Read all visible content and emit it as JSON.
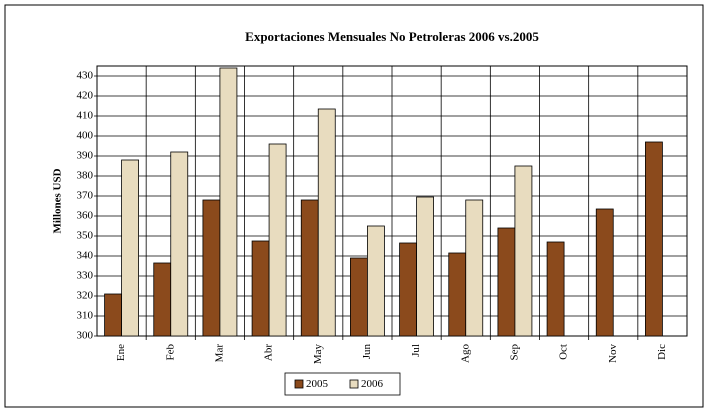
{
  "chart_data": {
    "type": "bar",
    "title": "Exportaciones Mensuales No Petroleras 2006 vs.2005",
    "y_label": "Millones USD",
    "categories": [
      "Ene",
      "Feb",
      "Mar",
      "Abr",
      "May",
      "Jun",
      "Jul",
      "Ago",
      "Sep",
      "Oct",
      "Nov",
      "Dic"
    ],
    "series": [
      {
        "name": "2005",
        "color": "#8b4a1c",
        "values": [
          321,
          336.5,
          368,
          347.5,
          368,
          339,
          346.5,
          341.5,
          354,
          347,
          363.5,
          397
        ]
      },
      {
        "name": "2006",
        "color": "#e8dcbf",
        "values": [
          388,
          392,
          434,
          396,
          413.5,
          355,
          369.5,
          368,
          385,
          null,
          null,
          null
        ]
      }
    ],
    "ylim": [
      300,
      435
    ],
    "yticks": [
      300,
      310,
      320,
      330,
      340,
      350,
      360,
      370,
      380,
      390,
      400,
      410,
      420,
      430
    ],
    "grid": true,
    "legend": "bottom"
  }
}
